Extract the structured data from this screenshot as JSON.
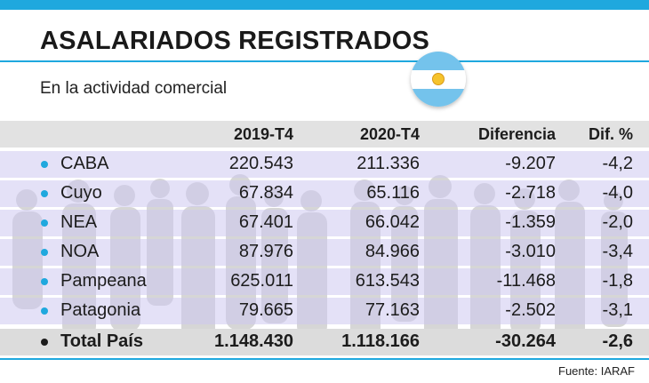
{
  "title": "ASALARIADOS REGISTRADOS",
  "subtitle": "En la actividad comercial",
  "source": "Fuente: IARAF",
  "colors": {
    "accent": "#1fa8de",
    "band": "#cdc8f0",
    "header": "#e2e2e2",
    "flag_blue": "#74c3ec",
    "flag_sun": "#f5c32c"
  },
  "icons": {
    "flag": "argentina-flag-icon",
    "bullet": "bullet-dot-icon"
  },
  "chart_data": {
    "type": "table",
    "columns": [
      "",
      "2019-T4",
      "2020-T4",
      "Diferencia",
      "Dif. %"
    ],
    "rows": [
      {
        "region": "CABA",
        "y2019": "220.543",
        "y2020": "211.336",
        "diff": "-9.207",
        "pct": "-4,2"
      },
      {
        "region": "Cuyo",
        "y2019": "67.834",
        "y2020": "65.116",
        "diff": "-2.718",
        "pct": "-4,0"
      },
      {
        "region": "NEA",
        "y2019": "67.401",
        "y2020": "66.042",
        "diff": "-1.359",
        "pct": "-2,0"
      },
      {
        "region": "NOA",
        "y2019": "87.976",
        "y2020": "84.966",
        "diff": "-3.010",
        "pct": "-3,4"
      },
      {
        "region": "Pampeana",
        "y2019": "625.011",
        "y2020": "613.543",
        "diff": "-11.468",
        "pct": "-1,8"
      },
      {
        "region": "Patagonia",
        "y2019": "79.665",
        "y2020": "77.163",
        "diff": "-2.502",
        "pct": "-3,1"
      }
    ],
    "total": {
      "region": "Total País",
      "y2019": "1.148.430",
      "y2020": "1.118.166",
      "diff": "-30.264",
      "pct": "-2,6"
    }
  }
}
